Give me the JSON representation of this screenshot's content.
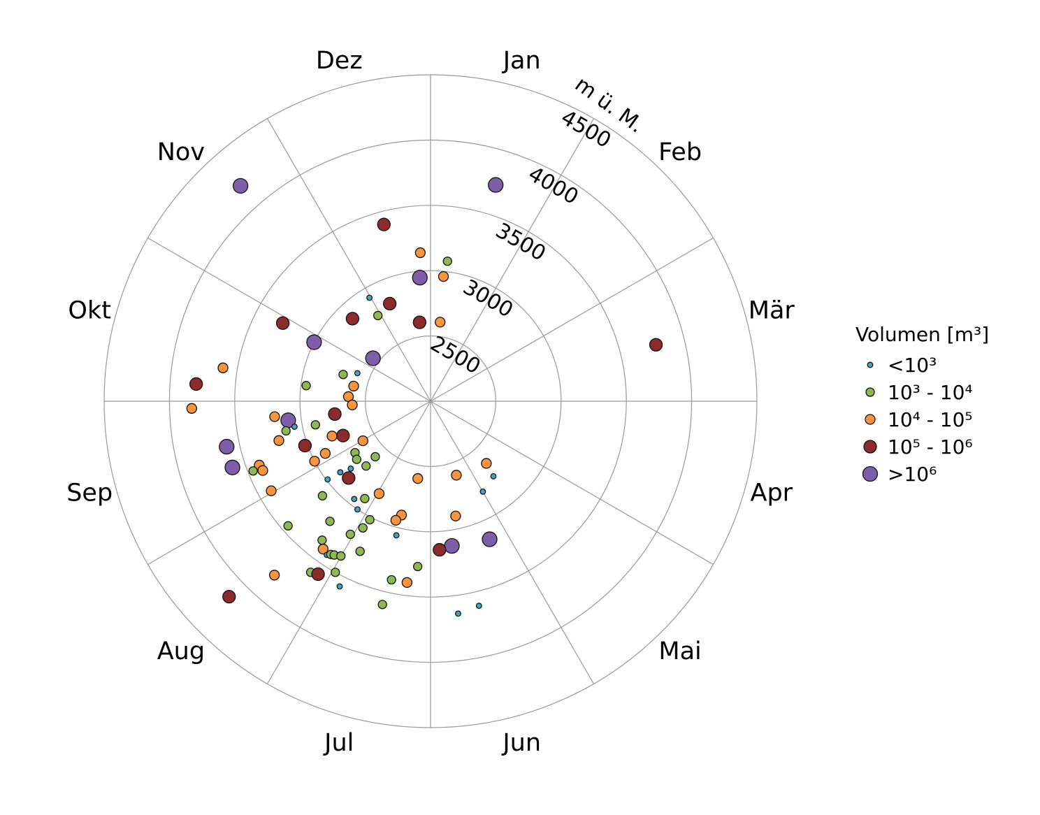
{
  "chart_data": {
    "type": "scatter",
    "projection": "polar",
    "angular_axis": {
      "labels": [
        "Jan",
        "Feb",
        "Mär",
        "Apr",
        "Mai",
        "Jun",
        "Jul",
        "Aug",
        "Sep",
        "Okt",
        "Nov",
        "Dez"
      ],
      "direction": "clockwise",
      "start": "top"
    },
    "radial_axis": {
      "label": "m ü. M.",
      "range": [
        2000,
        4500
      ],
      "ticks": [
        "2500",
        "3000",
        "3500",
        "4000",
        "4500"
      ]
    },
    "grid": true,
    "legend": {
      "title": "Volumen [m³]",
      "placement": "right",
      "classes": [
        {
          "label": "<10³",
          "color": "#42a3c2"
        },
        {
          "label": "10³ - 10⁴",
          "color": "#8fb752"
        },
        {
          "label": "10⁴ - 10⁵",
          "color": "#f8943d"
        },
        {
          "label": "10⁵ - 10⁶",
          "color": "#8c2b2b"
        },
        {
          "label": ">10⁶",
          "color": "#7e5ea8"
        }
      ]
    },
    "points": [
      {
        "day": 323,
        "elev": 4200,
        "class": 4
      },
      {
        "day": 17,
        "elev": 3730,
        "class": 4
      },
      {
        "day": 350,
        "elev": 3400,
        "class": 3
      },
      {
        "day": 361,
        "elev": 3140,
        "class": 2
      },
      {
        "day": 7,
        "elev": 3080,
        "class": 1
      },
      {
        "day": 360,
        "elev": 2950,
        "class": 4
      },
      {
        "day": 6,
        "elev": 2960,
        "class": 2
      },
      {
        "day": 334,
        "elev": 2920,
        "class": 0
      },
      {
        "day": 342,
        "elev": 2810,
        "class": 3
      },
      {
        "day": 333,
        "elev": 2770,
        "class": 1
      },
      {
        "day": 321,
        "elev": 2870,
        "class": 3
      },
      {
        "day": 357,
        "elev": 2610,
        "class": 3
      },
      {
        "day": 7,
        "elev": 2610,
        "class": 2
      },
      {
        "day": 302,
        "elev": 3280,
        "class": 3
      },
      {
        "day": 301,
        "elev": 3000,
        "class": 4
      },
      {
        "day": 311,
        "elev": 2550,
        "class": 4
      },
      {
        "day": 77,
        "elev": 3780,
        "class": 3
      },
      {
        "day": 283,
        "elev": 3610,
        "class": 2
      },
      {
        "day": 278,
        "elev": 3800,
        "class": 3
      },
      {
        "day": 272,
        "elev": 3830,
        "class": 2
      },
      {
        "day": 291,
        "elev": 2700,
        "class": 1
      },
      {
        "day": 295,
        "elev": 2600,
        "class": 0
      },
      {
        "day": 285,
        "elev": 2600,
        "class": 2
      },
      {
        "day": 281,
        "elev": 2960,
        "class": 1
      },
      {
        "day": 277,
        "elev": 2630,
        "class": 2
      },
      {
        "day": 271,
        "elev": 2600,
        "class": 2
      },
      {
        "day": 266,
        "elev": 2740,
        "class": 3
      },
      {
        "day": 268,
        "elev": 3200,
        "class": 2
      },
      {
        "day": 266,
        "elev": 3100,
        "class": 4
      },
      {
        "day": 263,
        "elev": 3060,
        "class": 0
      },
      {
        "day": 262,
        "elev": 3130,
        "class": 1
      },
      {
        "day": 262,
        "elev": 2900,
        "class": 1
      },
      {
        "day": 259,
        "elev": 3200,
        "class": 2
      },
      {
        "day": 254,
        "elev": 2800,
        "class": 2
      },
      {
        "day": 252,
        "elev": 2720,
        "class": 3
      },
      {
        "day": 254,
        "elev": 3020,
        "class": 3
      },
      {
        "day": 243,
        "elev": 2600,
        "class": 2
      },
      {
        "day": 247,
        "elev": 2900,
        "class": 2
      },
      {
        "day": 246,
        "elev": 3000,
        "class": 2
      },
      {
        "day": 239,
        "elev": 2700,
        "class": 1
      },
      {
        "day": 235,
        "elev": 2720,
        "class": 1
      },
      {
        "day": 228,
        "elev": 2600,
        "class": 1
      },
      {
        "day": 228,
        "elev": 2700,
        "class": 1
      },
      {
        "day": 235,
        "elev": 2880,
        "class": 0
      },
      {
        "day": 233,
        "elev": 2800,
        "class": 0
      },
      {
        "day": 230,
        "elev": 2860,
        "class": 3
      },
      {
        "day": 236,
        "elev": 2990,
        "class": 0
      },
      {
        "day": 253,
        "elev": 3400,
        "class": 2
      },
      {
        "day": 251,
        "elev": 3390,
        "class": 2
      },
      {
        "day": 252,
        "elev": 3460,
        "class": 1
      },
      {
        "day": 261,
        "elev": 3600,
        "class": 4
      },
      {
        "day": 255,
        "elev": 3600,
        "class": 4
      },
      {
        "day": 244,
        "elev": 3400,
        "class": 2
      },
      {
        "day": 232,
        "elev": 3100,
        "class": 1
      },
      {
        "day": 221,
        "elev": 2950,
        "class": 0
      },
      {
        "day": 217,
        "elev": 2900,
        "class": 1
      },
      {
        "day": 212,
        "elev": 2810,
        "class": 2
      },
      {
        "day": 217,
        "elev": 3000,
        "class": 0
      },
      {
        "day": 210,
        "elev": 3020,
        "class": 1
      },
      {
        "day": 197,
        "elev": 2900,
        "class": 2
      },
      {
        "day": 199,
        "elev": 2950,
        "class": 2
      },
      {
        "day": 232,
        "elev": 3450,
        "class": 1
      },
      {
        "day": 223,
        "elev": 3200,
        "class": 1
      },
      {
        "day": 197,
        "elev": 3060,
        "class": 0
      },
      {
        "day": 211,
        "elev": 3100,
        "class": 1
      },
      {
        "day": 214,
        "elev": 3190,
        "class": 1
      },
      {
        "day": 221,
        "elev": 3350,
        "class": 1
      },
      {
        "day": 219,
        "elev": 3400,
        "class": 2
      },
      {
        "day": 217,
        "elev": 3420,
        "class": 0
      },
      {
        "day": 216,
        "elev": 3400,
        "class": 1
      },
      {
        "day": 215,
        "elev": 3390,
        "class": 1
      },
      {
        "day": 213,
        "elev": 3370,
        "class": 1
      },
      {
        "day": 208,
        "elev": 3270,
        "class": 1
      },
      {
        "day": 225,
        "elev": 3790,
        "class": 2
      },
      {
        "day": 218,
        "elev": 3600,
        "class": 1
      },
      {
        "day": 216,
        "elev": 3580,
        "class": 3
      },
      {
        "day": 212,
        "elev": 3500,
        "class": 1
      },
      {
        "day": 209,
        "elev": 3580,
        "class": 0
      },
      {
        "day": 187,
        "elev": 3270,
        "class": 1
      },
      {
        "day": 195,
        "elev": 3400,
        "class": 1
      },
      {
        "day": 190,
        "elev": 3400,
        "class": 2
      },
      {
        "day": 196,
        "elev": 3600,
        "class": 1
      },
      {
        "day": 229,
        "elev": 4150,
        "class": 3
      },
      {
        "day": 192,
        "elev": 2600,
        "class": 2
      },
      {
        "day": 163,
        "elev": 2600,
        "class": 2
      },
      {
        "day": 140,
        "elev": 2640,
        "class": 2
      },
      {
        "day": 142,
        "elev": 2750,
        "class": 0
      },
      {
        "day": 152,
        "elev": 2800,
        "class": 0
      },
      {
        "day": 170,
        "elev": 2900,
        "class": 2
      },
      {
        "day": 159,
        "elev": 3150,
        "class": 4
      },
      {
        "day": 174,
        "elev": 3120,
        "class": 4
      },
      {
        "day": 179,
        "elev": 3140,
        "class": 3
      },
      {
        "day": 169,
        "elev": 3610,
        "class": 0
      },
      {
        "day": 175,
        "elev": 3640,
        "class": 0
      }
    ]
  }
}
